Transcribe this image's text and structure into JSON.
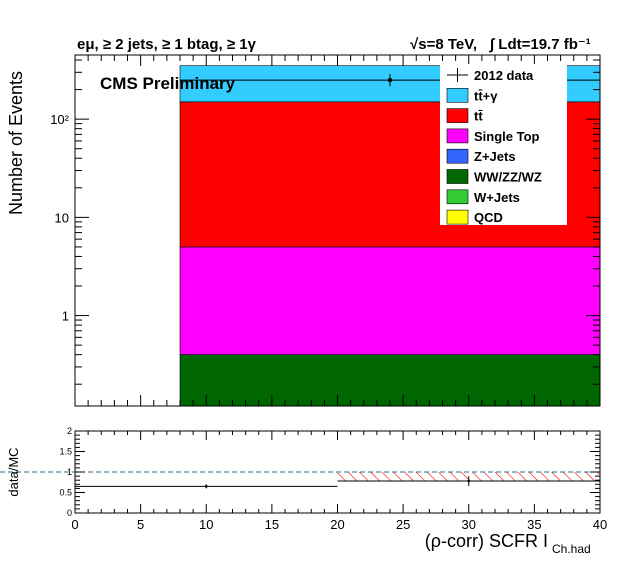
{
  "chart_data": [
    {
      "type": "bar",
      "stacked": true,
      "log_y": true,
      "title": "eμ, ≥ 2 jets, ≥ 1 btag, ≥ 1γ",
      "header_right": {
        "energy": "√s=8 TeV,",
        "lumi": "∫ Ldt=19.7 fb⁻¹"
      },
      "label": "CMS Preliminary",
      "ylabel": "Number of Events",
      "xlim": [
        0,
        40
      ],
      "ylim": [
        0.12,
        450
      ],
      "y_ticks": [
        {
          "value": 1,
          "label": "1"
        },
        {
          "value": 10,
          "label": "10"
        },
        {
          "value": 100,
          "label": "10²"
        }
      ],
      "bin_edges": [
        8,
        40
      ],
      "series": [
        {
          "name": "QCD",
          "color": "#ffff00",
          "values": [
            0
          ]
        },
        {
          "name": "W+Jets",
          "color": "#33cc33",
          "values": [
            0
          ]
        },
        {
          "name": "WW/ZZ/WZ",
          "color": "#006600",
          "values": [
            0.4
          ]
        },
        {
          "name": "Z+Jets",
          "color": "#3366ff",
          "values": [
            0
          ]
        },
        {
          "name": "Single Top",
          "color": "#ff00ff",
          "values": [
            4.6
          ]
        },
        {
          "name": "tt̄",
          "color": "#ff0000",
          "values": [
            145
          ]
        },
        {
          "name": "tt̄+γ",
          "color": "#33ccff",
          "values": [
            200
          ]
        }
      ],
      "data_points": [
        {
          "name": "2012 data",
          "x": 24,
          "y": 250,
          "xerr": 16
        }
      ],
      "legend": {
        "position": "top-right",
        "entries": [
          "2012 data",
          "tt̄+γ",
          "tt̄",
          "Single Top",
          "Z+Jets",
          "WW/ZZ/WZ",
          "W+Jets",
          "QCD"
        ]
      }
    },
    {
      "type": "scatter",
      "ylabel": "data/MC",
      "xlabel": "(ρ-corr) SCFR I",
      "xlabel_sub": "Ch.had",
      "xlim": [
        0,
        40
      ],
      "ylim": [
        0,
        2
      ],
      "x_ticks": [
        "0",
        "5",
        "10",
        "15",
        "20",
        "25",
        "30",
        "35",
        "40"
      ],
      "y_ticks": [
        "0",
        "0.5",
        "1",
        "1.5",
        "2"
      ],
      "reference_line": 1,
      "ratio_points": [
        {
          "x_low": 0,
          "x_high": 20,
          "y": 0.65,
          "yerr": 0.05
        },
        {
          "x_low": 20,
          "x_high": 40,
          "y": 0.78,
          "yerr": 0.12
        }
      ],
      "syst_band": {
        "x_low": 20,
        "x_high": 40,
        "y_low": 0.78,
        "y_high": 1.0,
        "color": "#ff0000"
      }
    }
  ]
}
